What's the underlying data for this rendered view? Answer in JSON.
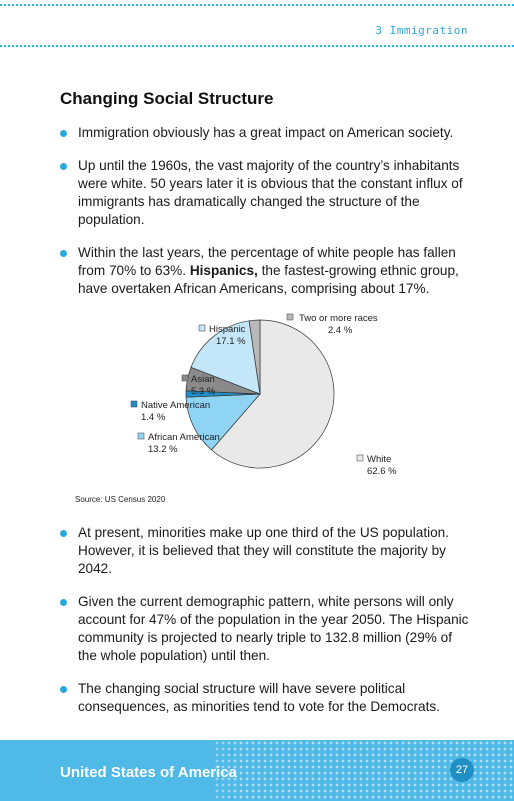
{
  "header": {
    "chapter": "3 Immigration"
  },
  "section_title": "Changing Social Structure",
  "bullets_top": [
    {
      "text": "Immigration obviously has a great impact on American society."
    },
    {
      "text": "Up until the 1960s, the vast majority of the country’s inhabitants were white. 50 years later it is obvious that the constant influx of immigrants has dramatically changed the structure of the population."
    },
    {
      "before": "Within the last years, the percentage of white people has fallen from 70% to 63%. ",
      "bold": "Hispanics,",
      "after": " the fastest-growing ethnic group, have overtaken African Americans, comprising about 17%."
    }
  ],
  "chart_data": {
    "type": "pie",
    "slices": [
      {
        "label": "White",
        "value_label": "62.6 %",
        "value": 62.6,
        "color": "#e9e9e9"
      },
      {
        "label": "African American",
        "value_label": "13.2 %",
        "value": 13.2,
        "color": "#8fd3f5"
      },
      {
        "label": "Native American",
        "value_label": "1.4 %",
        "value": 1.4,
        "color": "#1e8fc8"
      },
      {
        "label": "Asian",
        "value_label": "5.3 %",
        "value": 5.3,
        "color": "#8a8a8a"
      },
      {
        "label": "Hispanic",
        "value_label": "17.1 %",
        "value": 17.1,
        "color": "#c4e6f9"
      },
      {
        "label": "Two or more races",
        "value_label": "2.4 %",
        "value": 2.4,
        "color": "#b8b8b8"
      }
    ],
    "source": "Source: US Census 2020"
  },
  "bullets_bottom": [
    {
      "text": "At present, minorities make up one third of the US population. However, it is believed that they will constitute the majority by 2042."
    },
    {
      "text": "Given the current demographic pattern, white persons will only account for 47% of the population in the year 2050. The Hispanic community is projected to nearly triple to 132.8 million (29% of the whole population) until then."
    },
    {
      "text": "The changing social structure will have severe political consequences, as minorities tend to vote for the Democrats."
    }
  ],
  "footer": {
    "title": "United States of America",
    "page": "27"
  },
  "colors": {
    "accent": "#2aa8db",
    "footer_bg": "#4fb9e7"
  }
}
